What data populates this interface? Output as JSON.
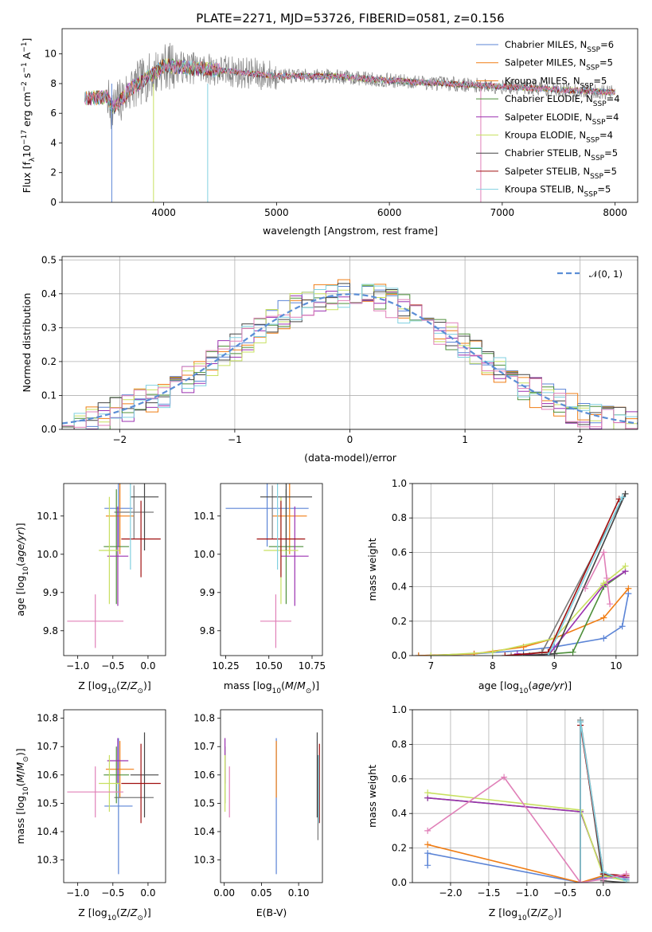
{
  "figure_title": "PLATE=2271, MJD=53726, FIBERID=0581, z=0.156",
  "colors": [
    "#5b84d6",
    "#f07d14",
    "#7a7a7a",
    "#4d8f3a",
    "#9b30b0",
    "#c8e060",
    "#444444",
    "#a01010",
    "#80d0e0",
    "#e080b8"
  ],
  "chart_data": [
    {
      "id": "spectrum",
      "type": "line",
      "title": "PLATE=2271, MJD=53726, FIBERID=0581, z=0.156",
      "xlabel": "wavelength [Angstrom, rest frame]",
      "ylabel": "Flux [fλ10⁻¹⁷ erg cm⁻² s⁻¹ A⁻¹]",
      "xlim": [
        3100,
        8200
      ],
      "ylim": [
        0,
        11.7
      ],
      "xticks": [
        4000,
        5000,
        6000,
        7000,
        8000
      ],
      "yticks": [
        0,
        2,
        4,
        6,
        8,
        10
      ],
      "grid": false,
      "legend_position": "right",
      "legend": [
        "Chabrier MILES, N_SSP=6",
        "Salpeter MILES, N_SSP=5",
        "Kroupa MILES, N_SSP=5",
        "Chabrier ELODIE, N_SSP=4",
        "Salpeter ELODIE, N_SSP=4",
        "Kroupa ELODIE, N_SSP=4",
        "Chabrier STELIB, N_SSP=5",
        "Salpeter STELIB, N_SSP=5",
        "Kroupa STELIB, N_SSP=5"
      ],
      "continuum_x": [
        3300,
        3500,
        3550,
        3700,
        3900,
        4000,
        4200,
        4500,
        5000,
        5500,
        6000,
        6500,
        7000,
        7500,
        8000
      ],
      "continuum_y": [
        7.0,
        7.1,
        6.3,
        7.6,
        8.6,
        9.2,
        9.1,
        8.9,
        8.5,
        8.5,
        8.2,
        8.0,
        7.8,
        7.6,
        7.4
      ]
    },
    {
      "id": "residuals",
      "type": "step",
      "xlabel": "(data-model)/error",
      "ylabel": "Normed distribution",
      "xlim": [
        -2.5,
        2.5
      ],
      "ylim": [
        0,
        0.51
      ],
      "xticks": [
        -2,
        -1,
        0,
        1,
        2
      ],
      "yticks": [
        0.0,
        0.1,
        0.2,
        0.3,
        0.4,
        0.5
      ],
      "grid": true,
      "legend_position": "top-right",
      "legend": [
        "N(0,1)"
      ],
      "bin_edges_range": [
        -2.5,
        2.5
      ],
      "bin_count": 48
    },
    {
      "id": "age-vs-Z",
      "type": "errorbar",
      "xlabel": "Z [log10(Z/Z⊙)]",
      "ylabel": "age [log10(age/yr)]",
      "xlim": [
        -1.2,
        0.25
      ],
      "ylim": [
        9.735,
        10.185
      ],
      "xticks": [
        -1.0,
        -0.5,
        0.0
      ],
      "yticks": [
        9.8,
        9.9,
        10.0,
        10.1
      ],
      "points": [
        {
          "x": -0.42,
          "xerr": 0.2,
          "y": 10.12,
          "yerr": 0.1
        },
        {
          "x": -0.4,
          "xerr": 0.2,
          "y": 10.1,
          "yerr": 0.1
        },
        {
          "x": -0.2,
          "xerr": 0.28,
          "y": 10.11,
          "yerr": 0.07
        },
        {
          "x": -0.45,
          "xerr": 0.18,
          "y": 10.02,
          "yerr": 0.15
        },
        {
          "x": -0.43,
          "xerr": 0.15,
          "y": 9.995,
          "yerr": 0.13
        },
        {
          "x": -0.55,
          "xerr": 0.15,
          "y": 10.01,
          "yerr": 0.14
        },
        {
          "x": -0.05,
          "xerr": 0.2,
          "y": 10.15,
          "yerr": 0.14
        },
        {
          "x": -0.1,
          "xerr": 0.28,
          "y": 10.04,
          "yerr": 0.1
        },
        {
          "x": -0.25,
          "xerr": 0.0,
          "y": 10.08,
          "yerr": 0.12
        },
        {
          "x": -0.75,
          "xerr": 0.4,
          "y": 9.825,
          "yerr": 0.07
        }
      ]
    },
    {
      "id": "age-vs-mass",
      "type": "errorbar",
      "xlabel": "mass [log10(M/M⊙)]",
      "ylabel": "",
      "xlim": [
        10.22,
        10.81
      ],
      "ylim": [
        9.735,
        10.185
      ],
      "xticks": [
        10.25,
        10.5,
        10.75
      ],
      "yticks": [
        9.8,
        9.9,
        10.0,
        10.1
      ],
      "points": [
        {
          "x": 10.49,
          "xerr": 0.24,
          "y": 10.12,
          "yerr": 0.1
        },
        {
          "x": 10.62,
          "xerr": 0.1,
          "y": 10.1,
          "yerr": 0.1
        },
        {
          "x": 10.52,
          "xerr": 0.0,
          "y": 10.11,
          "yerr": 0.07
        },
        {
          "x": 10.6,
          "xerr": 0.1,
          "y": 10.02,
          "yerr": 0.15
        },
        {
          "x": 10.65,
          "xerr": 0.08,
          "y": 9.995,
          "yerr": 0.13
        },
        {
          "x": 10.57,
          "xerr": 0.1,
          "y": 10.01,
          "yerr": 0.14
        },
        {
          "x": 10.6,
          "xerr": 0.15,
          "y": 10.15,
          "yerr": 0.14
        },
        {
          "x": 10.57,
          "xerr": 0.14,
          "y": 10.04,
          "yerr": 0.1
        },
        {
          "x": 10.55,
          "xerr": 0.0,
          "y": 10.08,
          "yerr": 0.12
        },
        {
          "x": 10.54,
          "xerr": 0.09,
          "y": 9.825,
          "yerr": 0.07
        }
      ]
    },
    {
      "id": "massweight-vs-age",
      "type": "line",
      "xlabel": "age [log10(age/yr)]",
      "ylabel": "mass weight",
      "xlim": [
        6.7,
        10.35
      ],
      "ylim": [
        0.0,
        1.0
      ],
      "xticks": [
        7,
        8,
        9,
        10
      ],
      "yticks": [
        0.0,
        0.2,
        0.4,
        0.6,
        0.8,
        1.0
      ],
      "grid": true,
      "series": [
        {
          "x": [
            6.8,
            7.7,
            8.5,
            9.0,
            9.8,
            10.1,
            10.2
          ],
          "y": [
            0.0,
            0.01,
            0.03,
            0.05,
            0.1,
            0.17,
            0.36
          ]
        },
        {
          "x": [
            6.8,
            7.7,
            8.5,
            9.0,
            9.8,
            10.2
          ],
          "y": [
            0.0,
            0.01,
            0.05,
            0.1,
            0.22,
            0.39
          ]
        },
        {
          "x": [
            8.3,
            8.8,
            10.15
          ],
          "y": [
            0.0,
            0.02,
            0.94
          ]
        },
        {
          "x": [
            8.6,
            9.3,
            9.8,
            10.15
          ],
          "y": [
            0.0,
            0.02,
            0.4,
            0.49
          ]
        },
        {
          "x": [
            8.4,
            8.9,
            9.8,
            10.15
          ],
          "y": [
            0.01,
            0.0,
            0.41,
            0.49
          ]
        },
        {
          "x": [
            7.0,
            8.0,
            9.0,
            9.8,
            10.15
          ],
          "y": [
            0.0,
            0.02,
            0.1,
            0.42,
            0.52
          ]
        },
        {
          "x": [
            8.5,
            9.0,
            10.15
          ],
          "y": [
            0.0,
            0.01,
            0.94
          ]
        },
        {
          "x": [
            8.2,
            8.9,
            10.05
          ],
          "y": [
            0.0,
            0.02,
            0.91
          ]
        },
        {
          "x": [
            8.9,
            10.1
          ],
          "y": [
            0.0,
            0.92
          ]
        },
        {
          "x": [
            9.5,
            9.8,
            9.85,
            9.9
          ],
          "y": [
            0.39,
            0.6,
            0.45,
            0.3
          ]
        }
      ]
    },
    {
      "id": "mass-vs-Z",
      "type": "errorbar",
      "xlabel": "Z [log10(Z/Z⊙)]",
      "ylabel": "mass [log10(M/M⊙)]",
      "xlim": [
        -1.2,
        0.25
      ],
      "ylim": [
        10.22,
        10.83
      ],
      "xticks": [
        -1.0,
        -0.5,
        0.0
      ],
      "yticks": [
        10.3,
        10.4,
        10.5,
        10.6,
        10.7,
        10.8
      ],
      "points": [
        {
          "x": -0.42,
          "xerr": 0.2,
          "y": 10.49,
          "yerr": 0.24
        },
        {
          "x": -0.4,
          "xerr": 0.2,
          "y": 10.62,
          "yerr": 0.1
        },
        {
          "x": -0.2,
          "xerr": 0.28,
          "y": 10.52,
          "yerr": 0.0
        },
        {
          "x": -0.45,
          "xerr": 0.18,
          "y": 10.6,
          "yerr": 0.1
        },
        {
          "x": -0.43,
          "xerr": 0.15,
          "y": 10.65,
          "yerr": 0.08
        },
        {
          "x": -0.55,
          "xerr": 0.15,
          "y": 10.57,
          "yerr": 0.1
        },
        {
          "x": -0.05,
          "xerr": 0.2,
          "y": 10.6,
          "yerr": 0.15
        },
        {
          "x": -0.1,
          "xerr": 0.28,
          "y": 10.57,
          "yerr": 0.14
        },
        {
          "x": -0.25,
          "xerr": 0.0,
          "y": 10.55,
          "yerr": 0.0
        },
        {
          "x": -0.75,
          "xerr": 0.4,
          "y": 10.54,
          "yerr": 0.09
        }
      ]
    },
    {
      "id": "mass-vs-EBV",
      "type": "errorbar",
      "xlabel": "E(B-V)",
      "ylabel": "",
      "xlim": [
        -0.005,
        0.132
      ],
      "ylim": [
        10.22,
        10.83
      ],
      "xticks": [
        0.0,
        0.05,
        0.1
      ],
      "yticks": [
        10.3,
        10.4,
        10.5,
        10.6,
        10.7,
        10.8
      ],
      "points": [
        {
          "x": 0.07,
          "y": 10.49,
          "yerr": 0.24
        },
        {
          "x": 0.07,
          "y": 10.62,
          "yerr": 0.1
        },
        {
          "x": 0.126,
          "y": 10.52,
          "yerr": 0.15
        },
        {
          "x": 0.001,
          "y": 10.6,
          "yerr": 0.1
        },
        {
          "x": 0.001,
          "y": 10.65,
          "yerr": 0.08
        },
        {
          "x": 0.001,
          "y": 10.57,
          "yerr": 0.1
        },
        {
          "x": 0.125,
          "y": 10.6,
          "yerr": 0.15
        },
        {
          "x": 0.128,
          "y": 10.57,
          "yerr": 0.14
        },
        {
          "x": 0.127,
          "y": 10.55,
          "yerr": 0.12
        },
        {
          "x": 0.007,
          "y": 10.54,
          "yerr": 0.09
        }
      ]
    },
    {
      "id": "massweight-vs-Z",
      "type": "line",
      "xlabel": "Z [log10(Z/Z⊙)]",
      "ylabel": "mass weight",
      "xlim": [
        -2.5,
        0.45
      ],
      "ylim": [
        0.0,
        1.0
      ],
      "xticks": [
        -2.0,
        -1.5,
        -1.0,
        -0.5,
        0.0
      ],
      "yticks": [
        0.0,
        0.2,
        0.4,
        0.6,
        0.8,
        1.0
      ],
      "grid": true,
      "series": [
        {
          "x": [
            -2.3,
            -2.3,
            -0.3,
            0.0,
            0.3
          ],
          "y": [
            0.1,
            0.17,
            0.0,
            0.03,
            0.02
          ]
        },
        {
          "x": [
            -2.3,
            -0.3,
            0.0,
            0.3
          ],
          "y": [
            0.22,
            0.0,
            0.04,
            0.03
          ]
        },
        {
          "x": [
            -0.3,
            -0.3,
            0.0
          ],
          "y": [
            0.0,
            0.94,
            0.06
          ]
        },
        {
          "x": [
            -2.3,
            -0.3,
            0.0,
            0.3
          ],
          "y": [
            0.49,
            0.41,
            0.05,
            0.01
          ]
        },
        {
          "x": [
            -2.3,
            -0.3,
            0.0,
            0.3
          ],
          "y": [
            0.49,
            0.41,
            0.05,
            0.03
          ]
        },
        {
          "x": [
            -2.3,
            -0.3,
            0.0,
            0.3
          ],
          "y": [
            0.52,
            0.42,
            0.04,
            0.01
          ]
        },
        {
          "x": [
            -0.3,
            -0.3,
            0.0,
            0.3
          ],
          "y": [
            0.0,
            0.93,
            0.01,
            0.0
          ]
        },
        {
          "x": [
            -0.3,
            -0.3,
            0.0,
            0.3
          ],
          "y": [
            0.0,
            0.91,
            0.05,
            0.04
          ]
        },
        {
          "x": [
            -0.3,
            -0.3,
            0.0,
            0.3
          ],
          "y": [
            0.0,
            0.93,
            0.06,
            0.01
          ]
        },
        {
          "x": [
            -2.3,
            -1.3,
            -0.3,
            0.0,
            0.3
          ],
          "y": [
            0.3,
            0.61,
            0.0,
            0.02,
            0.05
          ]
        }
      ]
    }
  ]
}
